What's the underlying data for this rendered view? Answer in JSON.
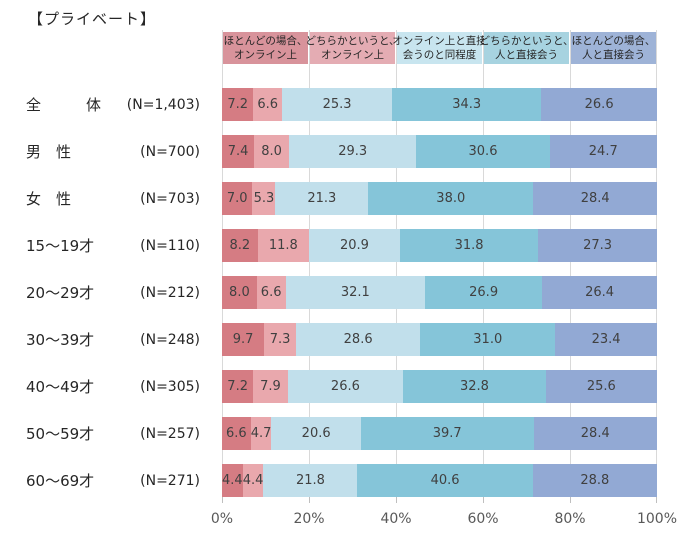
{
  "title": "【プライベート】",
  "chart_data": {
    "type": "bar",
    "variant": "stacked-horizontal-100pct",
    "unit": "%",
    "title": "【プライベート】",
    "x_axis_ticks": [
      "0%",
      "20%",
      "40%",
      "60%",
      "80%",
      "100%"
    ],
    "xlim": [
      0,
      100
    ],
    "gridlines": true,
    "legend_position": "top-header-row",
    "series": [
      {
        "label": "ほとんどの場合、オンライン上",
        "lines": [
          "ほとんどの場合、",
          "オンライン上"
        ],
        "bar_color": "#d57c83",
        "header_color": "#d8939b"
      },
      {
        "label": "どちらかというと、オンライン上",
        "lines": [
          "どちらかというと、",
          "オンライン上"
        ],
        "bar_color": "#e9a8ad",
        "header_color": "#e4acb3"
      },
      {
        "label": "オンライン上と直接会うのと同程度",
        "lines": [
          "オンライン上と直接",
          "会うのと同程度"
        ],
        "bar_color": "#c1dfeb",
        "header_color": "#c8e5ef"
      },
      {
        "label": "どちらかというと、人と直接会う",
        "lines": [
          "どちらかというと、",
          "人と直接会う"
        ],
        "bar_color": "#85c5d9",
        "header_color": "#a7d3e0"
      },
      {
        "label": "ほとんどの場合、人と直接会う",
        "lines": [
          "ほとんどの場合、",
          "人と直接会う"
        ],
        "bar_color": "#92a9d4",
        "header_color": "#9eb3d7"
      }
    ],
    "categories": [
      {
        "label": "全　　　体",
        "n": "(N=1,403)",
        "values": [
          7.2,
          6.6,
          25.3,
          34.3,
          26.6
        ]
      },
      {
        "label": "男　性",
        "n": "(N=700)",
        "values": [
          7.4,
          8.0,
          29.3,
          30.6,
          24.7
        ]
      },
      {
        "label": "女　性",
        "n": "(N=703)",
        "values": [
          7.0,
          5.3,
          21.3,
          38.0,
          28.4
        ]
      },
      {
        "label": "15～19才",
        "n": "(N=110)",
        "values": [
          8.2,
          11.8,
          20.9,
          31.8,
          27.3
        ]
      },
      {
        "label": "20～29才",
        "n": "(N=212)",
        "values": [
          8.0,
          6.6,
          32.1,
          26.9,
          26.4
        ]
      },
      {
        "label": "30～39才",
        "n": "(N=248)",
        "values": [
          9.7,
          7.3,
          28.6,
          31.0,
          23.4
        ]
      },
      {
        "label": "40～49才",
        "n": "(N=305)",
        "values": [
          7.2,
          7.9,
          26.6,
          32.8,
          25.6
        ]
      },
      {
        "label": "50～59才",
        "n": "(N=257)",
        "values": [
          6.6,
          4.7,
          20.6,
          39.7,
          28.4
        ]
      },
      {
        "label": "60～69才",
        "n": "(N=271)",
        "values": [
          4.4,
          4.4,
          21.8,
          40.6,
          28.8
        ]
      }
    ]
  }
}
